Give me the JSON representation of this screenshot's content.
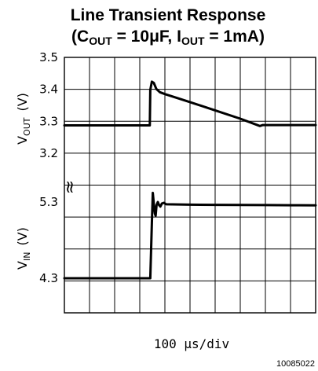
{
  "chart_data": {
    "type": "line",
    "title": {
      "line1": "Line Transient Response",
      "line2_prefix": "(C",
      "cout_sub": "OUT",
      "line2_mid": " = 10μF, I",
      "iout_sub": "OUT",
      "line2_suffix": " = 1mA)"
    },
    "xlabel": "100 μs/div",
    "x_divisions": 10,
    "y_divisions": 8,
    "grid": true,
    "break_symbol": "≈",
    "figure_id": "10085022",
    "panels": [
      {
        "name": "VOUT",
        "label_main": "V",
        "label_sub": "OUT",
        "label_unit": "(V)",
        "ylim": [
          3.15,
          3.5
        ],
        "ticks": [
          {
            "label": "3.5",
            "value": 3.5
          },
          {
            "label": "3.4",
            "value": 3.4
          },
          {
            "label": "3.3",
            "value": 3.3
          },
          {
            "label": "3.2",
            "value": 3.2
          }
        ],
        "trace": {
          "x": [
            0,
            3.4,
            3.42,
            3.48,
            3.56,
            3.66,
            3.8,
            4.0,
            5.0,
            6.0,
            7.0,
            7.78,
            7.9,
            10.0
          ],
          "y": [
            3.287,
            3.287,
            3.398,
            3.424,
            3.42,
            3.401,
            3.391,
            3.385,
            3.36,
            3.334,
            3.308,
            3.285,
            3.288,
            3.288
          ]
        }
      },
      {
        "name": "VIN",
        "label_main": "V",
        "label_sub": "IN",
        "label_unit": "(V)",
        "ylim": [
          3.9,
          5.55
        ],
        "ticks": [
          {
            "label": "5.3",
            "value": 5.3
          },
          {
            "label": "4.3",
            "value": 4.3
          }
        ],
        "trace": {
          "x": [
            0,
            3.42,
            3.48,
            3.52,
            3.56,
            3.6,
            3.63,
            3.67,
            3.72,
            3.77,
            3.82,
            3.88,
            3.96,
            4.05,
            5.0,
            6.0,
            7.0,
            8.0,
            9.0,
            10.0
          ],
          "y": [
            4.3,
            4.3,
            5.02,
            5.42,
            5.28,
            5.15,
            5.12,
            5.26,
            5.3,
            5.26,
            5.24,
            5.28,
            5.29,
            5.27,
            5.265,
            5.263,
            5.262,
            5.26,
            5.258,
            5.256
          ]
        }
      }
    ]
  }
}
